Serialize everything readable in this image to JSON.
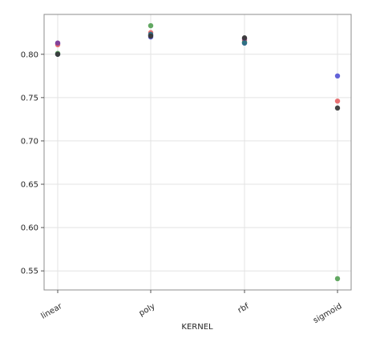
{
  "chart_data": {
    "type": "scatter",
    "title": "",
    "xlabel": "KERNEL",
    "ylabel": "",
    "categories": [
      "linear",
      "poly",
      "rbf",
      "sigmoid"
    ],
    "yticks": [
      "0.55",
      "0.60",
      "0.65",
      "0.70",
      "0.75",
      "0.80"
    ],
    "ylim": [
      0.528,
      0.846
    ],
    "grid": true,
    "legend": "none",
    "series": [
      {
        "color": "#5b5bd6",
        "values": [
          0.812,
          0.82,
          0.813,
          0.775
        ]
      },
      {
        "color": "#e8696b",
        "values": [
          0.811,
          0.825,
          0.816,
          0.746
        ]
      },
      {
        "color": "#5aa35a",
        "values": [
          0.801,
          0.833,
          0.814,
          0.541
        ]
      },
      {
        "color": "#7e3f9a",
        "values": [
          0.813,
          0.822,
          0.818,
          null
        ]
      },
      {
        "color": "#2d6e85",
        "values": [
          0.8,
          0.823,
          0.813,
          null
        ]
      },
      {
        "color": "#3a3a3a",
        "values": [
          0.8,
          0.821,
          0.819,
          0.738
        ]
      }
    ]
  }
}
